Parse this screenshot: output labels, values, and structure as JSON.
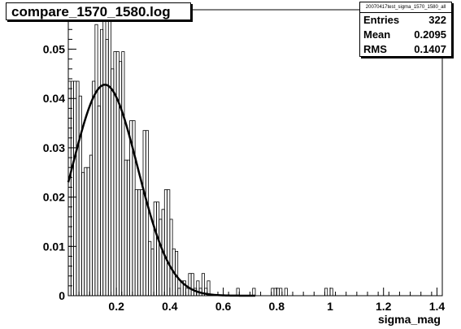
{
  "title": "compare_1570_1580.log",
  "stats": {
    "name": "20070417test_sigma_1570_1580_all",
    "rows": [
      {
        "label": "Entries",
        "value": "322"
      },
      {
        "label": "Mean",
        "value": "0.2095"
      },
      {
        "label": "RMS",
        "value": "0.1407"
      }
    ]
  },
  "chart_data": {
    "type": "histogram",
    "title": "compare_1570_1580.log",
    "xlabel": "sigma_mag",
    "ylabel": "",
    "xlim": [
      0.02,
      1.42
    ],
    "ylim": [
      0,
      0.058
    ],
    "xticks": [
      0.2,
      0.4,
      0.6,
      0.8,
      1,
      1.2,
      1.4
    ],
    "yticks": [
      0,
      0.01,
      0.02,
      0.03,
      0.04,
      0.05
    ],
    "ytick_labels": [
      "0",
      "0.01",
      "0.02",
      "0.03",
      "0.04",
      "0.05"
    ],
    "bin_width": 0.01,
    "bins": [
      [
        0.02,
        0.0435
      ],
      [
        0.03,
        0.0435
      ],
      [
        0.04,
        0.0435
      ],
      [
        0.05,
        0.0435
      ],
      [
        0.06,
        0.0405
      ],
      [
        0.07,
        0.025
      ],
      [
        0.08,
        0.026
      ],
      [
        0.09,
        0.026
      ],
      [
        0.1,
        0.0285
      ],
      [
        0.11,
        0.0435
      ],
      [
        0.12,
        0.055
      ],
      [
        0.13,
        0.0385
      ],
      [
        0.14,
        0.054
      ],
      [
        0.15,
        0.058
      ],
      [
        0.16,
        0.052
      ],
      [
        0.17,
        0.058
      ],
      [
        0.18,
        0.046
      ],
      [
        0.19,
        0.0495
      ],
      [
        0.2,
        0.0495
      ],
      [
        0.21,
        0.0475
      ],
      [
        0.22,
        0.0495
      ],
      [
        0.23,
        0.0275
      ],
      [
        0.24,
        0.0275
      ],
      [
        0.25,
        0.0355
      ],
      [
        0.26,
        0.0355
      ],
      [
        0.27,
        0.0215
      ],
      [
        0.28,
        0.0215
      ],
      [
        0.29,
        0.0215
      ],
      [
        0.3,
        0.0335
      ],
      [
        0.31,
        0.0335
      ],
      [
        0.32,
        0.011
      ],
      [
        0.33,
        0.0095
      ],
      [
        0.34,
        0.019
      ],
      [
        0.35,
        0.019
      ],
      [
        0.36,
        0.0155
      ],
      [
        0.37,
        0.0175
      ],
      [
        0.38,
        0.0215
      ],
      [
        0.39,
        0.0215
      ],
      [
        0.4,
        0.0155
      ],
      [
        0.41,
        0.0095
      ],
      [
        0.42,
        0.009
      ],
      [
        0.43,
        0.0015
      ],
      [
        0.44,
        0.003
      ],
      [
        0.45,
        0.003
      ],
      [
        0.46,
        0.0015
      ],
      [
        0.47,
        0.0045
      ],
      [
        0.48,
        0.0045
      ],
      [
        0.49,
        0.0015
      ],
      [
        0.5,
        0.003
      ],
      [
        0.51,
        0.0015
      ],
      [
        0.52,
        0.0045
      ],
      [
        0.53,
        0.0015
      ],
      [
        0.54,
        0.003
      ],
      [
        0.55,
        0.0
      ],
      [
        0.56,
        0.0
      ],
      [
        0.57,
        0.0
      ],
      [
        0.58,
        0.0
      ],
      [
        0.59,
        0.0
      ],
      [
        0.6,
        0.0
      ],
      [
        0.61,
        0.0
      ],
      [
        0.62,
        0.0
      ],
      [
        0.63,
        0.0
      ],
      [
        0.64,
        0.0
      ],
      [
        0.65,
        0.0015
      ],
      [
        0.66,
        0.0
      ],
      [
        0.67,
        0.0
      ],
      [
        0.68,
        0.0
      ],
      [
        0.69,
        0.0
      ],
      [
        0.7,
        0.0
      ],
      [
        0.71,
        0.0015
      ],
      [
        0.72,
        0.0
      ],
      [
        0.73,
        0.0
      ],
      [
        0.74,
        0.0
      ],
      [
        0.75,
        0.0
      ],
      [
        0.76,
        0.0
      ],
      [
        0.77,
        0.0
      ],
      [
        0.78,
        0.0015
      ],
      [
        0.79,
        0.0015
      ],
      [
        0.8,
        0.0015
      ],
      [
        0.81,
        0.0015
      ],
      [
        0.82,
        0.0
      ],
      [
        0.83,
        0.0015
      ],
      [
        0.84,
        0.0
      ],
      [
        0.85,
        0.0
      ],
      [
        0.86,
        0.0
      ],
      [
        0.87,
        0.0
      ],
      [
        0.88,
        0.0
      ],
      [
        0.89,
        0.0
      ],
      [
        0.9,
        0.0
      ],
      [
        0.91,
        0.0
      ],
      [
        0.92,
        0.0
      ],
      [
        0.93,
        0.0
      ],
      [
        0.94,
        0.0
      ],
      [
        0.95,
        0.0
      ],
      [
        0.96,
        0.0
      ],
      [
        0.97,
        0.0
      ],
      [
        0.98,
        0.0015
      ],
      [
        0.99,
        0.0
      ],
      [
        1.0,
        0.0015
      ],
      [
        1.01,
        0.0
      ]
    ],
    "fit": {
      "type": "gaussian",
      "amplitude": 0.0428,
      "mean": 0.157,
      "sigma": 0.123,
      "x_range": [
        0.02,
        0.72
      ]
    },
    "grid": false,
    "legend": "none"
  }
}
